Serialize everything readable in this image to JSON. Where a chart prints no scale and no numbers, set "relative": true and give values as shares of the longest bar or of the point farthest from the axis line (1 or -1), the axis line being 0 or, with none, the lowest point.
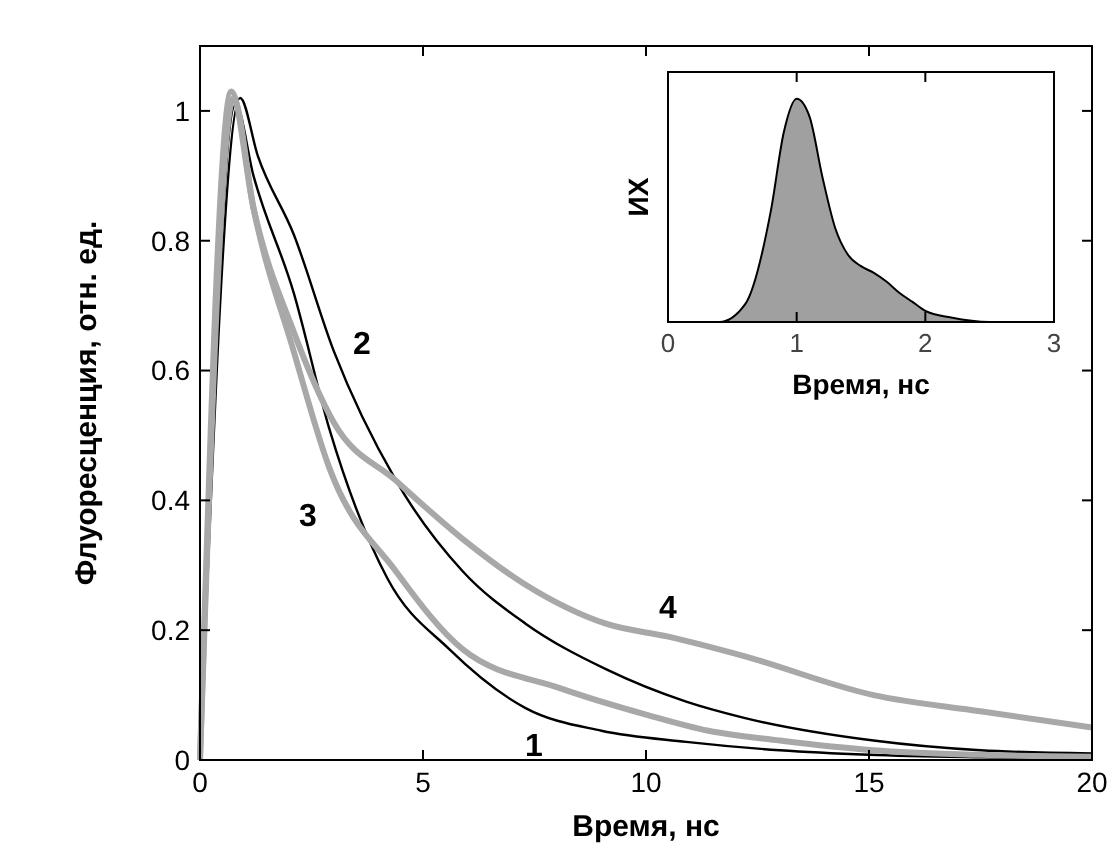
{
  "chart_data": [
    {
      "type": "line",
      "xlabel": "Время, нс",
      "ylabel": "Флуоресценция, отн. ед.",
      "xlim": [
        0,
        20
      ],
      "ylim": [
        0,
        1.1
      ],
      "xticks": [
        0,
        5,
        10,
        15,
        20
      ],
      "yticks": [
        0,
        0.2,
        0.4,
        0.6,
        0.8,
        1
      ],
      "grid": false,
      "line_style": "solid",
      "series": [
        {
          "name": "1",
          "color": "#000000",
          "x": [
            0,
            0.8,
            1.2,
            2.1,
            2.9,
            4.2,
            5.6,
            7.3,
            9,
            10.9,
            13,
            15,
            17.5,
            20
          ],
          "values": [
            0,
            1.01,
            0.9,
            0.72,
            0.51,
            0.28,
            0.17,
            0.08,
            0.045,
            0.028,
            0.015,
            0.008,
            0.004,
            0.002
          ]
        },
        {
          "name": "2",
          "color": "#000000",
          "x": [
            0,
            0.9,
            1.3,
            2.1,
            3.0,
            4.4,
            5.9,
            7.3,
            9.1,
            10.9,
            12.2,
            15.1,
            17.5,
            20
          ],
          "values": [
            0,
            1.02,
            0.93,
            0.81,
            0.63,
            0.43,
            0.29,
            0.21,
            0.14,
            0.09,
            0.065,
            0.03,
            0.015,
            0.01
          ]
        },
        {
          "name": "3",
          "color": "#a8a8a8",
          "x": [
            0,
            0.75,
            1.2,
            2.1,
            2.9,
            4.4,
            5.9,
            8.1,
            10,
            11.4,
            13,
            15.1,
            17.5,
            20
          ],
          "values": [
            0,
            1.02,
            0.85,
            0.63,
            0.45,
            0.29,
            0.17,
            0.11,
            0.07,
            0.045,
            0.03,
            0.015,
            0.008,
            0.005
          ]
        },
        {
          "name": "4",
          "color": "#a8a8a8",
          "x": [
            0,
            0.7,
            1.2,
            2.1,
            3.0,
            4.4,
            5.9,
            7.3,
            9.1,
            10.5,
            12.2,
            15.1,
            17.5,
            20
          ],
          "values": [
            0,
            1.03,
            0.85,
            0.66,
            0.52,
            0.43,
            0.34,
            0.27,
            0.21,
            0.19,
            0.16,
            0.1,
            0.075,
            0.05
          ]
        }
      ]
    },
    {
      "type": "area",
      "relative": true,
      "xlabel": "Время, нс",
      "ylabel": "ИХ",
      "xlim": [
        0,
        3
      ],
      "xticks": [
        0,
        1,
        2,
        3
      ],
      "tick_labels": "x",
      "grid": false,
      "series": [
        {
          "color": "#a0a0a0",
          "x": [
            0,
            0.4,
            0.6,
            0.8,
            0.9,
            1.0,
            1.1,
            1.2,
            1.3,
            1.4,
            1.5,
            1.6,
            1.7,
            1.8,
            1.9,
            2.0,
            2.2,
            2.5,
            3
          ],
          "values": [
            0,
            0,
            0.08,
            0.5,
            0.85,
            1,
            0.92,
            0.65,
            0.42,
            0.3,
            0.25,
            0.22,
            0.18,
            0.13,
            0.09,
            0.05,
            0.02,
            0,
            0
          ]
        }
      ]
    }
  ]
}
